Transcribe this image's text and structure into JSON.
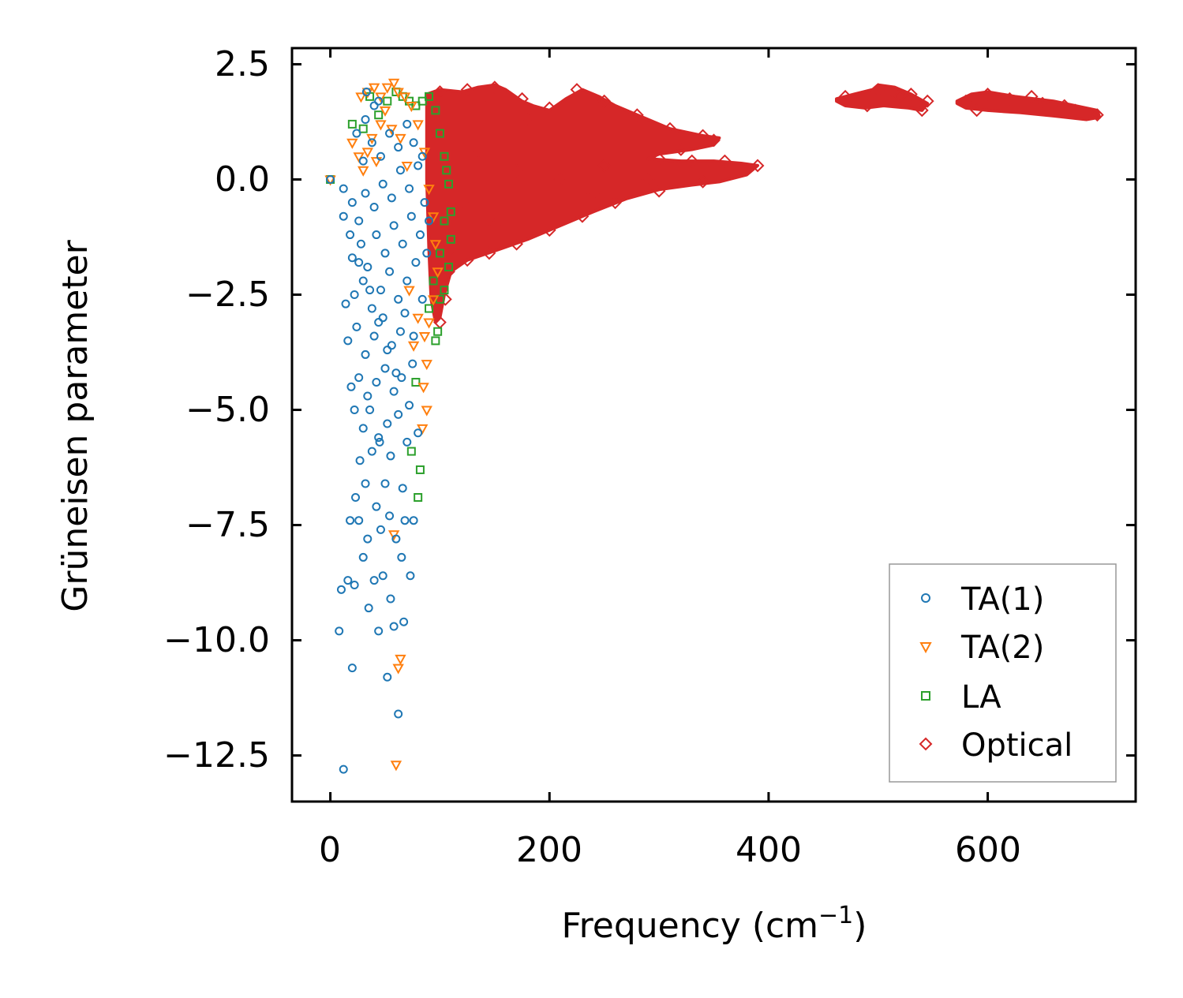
{
  "chart_data": {
    "type": "scatter",
    "title": "",
    "xlabel": "Frequency (cm",
    "xlabel_sup": "−1",
    "xlabel_end": ")",
    "ylabel": "Grüneisen parameter",
    "xlim": [
      -35,
      735
    ],
    "ylim": [
      -13.5,
      2.85
    ],
    "xticks": [
      0,
      200,
      400,
      600
    ],
    "xtick_labels": [
      "0",
      "200",
      "400",
      "600"
    ],
    "yticks": [
      2.5,
      0.0,
      -2.5,
      -5.0,
      -7.5,
      -10.0,
      -12.5
    ],
    "ytick_labels": [
      "2.5",
      "0.0",
      "−2.5",
      "−5.0",
      "−7.5",
      "−10.0",
      "−12.5"
    ],
    "legend_position": "lower-right",
    "series": [
      {
        "name": "TA(1)",
        "marker": "circle",
        "color": "#1f77b4",
        "points": [
          [
            0,
            0
          ],
          [
            12,
            -12.8
          ],
          [
            20,
            -10.6
          ],
          [
            8,
            -9.8
          ],
          [
            35,
            -9.3
          ],
          [
            44,
            -9.8
          ],
          [
            52,
            -10.8
          ],
          [
            58,
            -9.7
          ],
          [
            62,
            -11.6
          ],
          [
            67,
            -9.6
          ],
          [
            10,
            -8.9
          ],
          [
            16,
            -8.7
          ],
          [
            22,
            -8.8
          ],
          [
            30,
            -8.2
          ],
          [
            40,
            -8.7
          ],
          [
            48,
            -8.6
          ],
          [
            55,
            -9.1
          ],
          [
            65,
            -8.2
          ],
          [
            73,
            -8.6
          ],
          [
            18,
            -7.4
          ],
          [
            26,
            -7.4
          ],
          [
            34,
            -7.8
          ],
          [
            46,
            -7.6
          ],
          [
            54,
            -7.3
          ],
          [
            60,
            -7.8
          ],
          [
            68,
            -7.4
          ],
          [
            76,
            -7.4
          ],
          [
            23,
            -6.9
          ],
          [
            32,
            -6.6
          ],
          [
            42,
            -7.1
          ],
          [
            50,
            -6.6
          ],
          [
            66,
            -6.7
          ],
          [
            27,
            -6.1
          ],
          [
            38,
            -5.9
          ],
          [
            45,
            -5.7
          ],
          [
            55,
            -6.0
          ],
          [
            70,
            -5.7
          ],
          [
            80,
            -5.5
          ],
          [
            22,
            -5.0
          ],
          [
            30,
            -5.4
          ],
          [
            36,
            -5.0
          ],
          [
            44,
            -5.6
          ],
          [
            52,
            -5.3
          ],
          [
            62,
            -5.1
          ],
          [
            72,
            -4.9
          ],
          [
            19,
            -4.5
          ],
          [
            26,
            -4.3
          ],
          [
            34,
            -4.7
          ],
          [
            42,
            -4.4
          ],
          [
            50,
            -4.1
          ],
          [
            58,
            -4.6
          ],
          [
            65,
            -4.3
          ],
          [
            75,
            -4.0
          ],
          [
            16,
            -3.5
          ],
          [
            24,
            -3.2
          ],
          [
            32,
            -3.8
          ],
          [
            40,
            -3.4
          ],
          [
            48,
            -3.0
          ],
          [
            56,
            -3.6
          ],
          [
            64,
            -3.3
          ],
          [
            14,
            -2.7
          ],
          [
            22,
            -2.5
          ],
          [
            30,
            -2.2
          ],
          [
            38,
            -2.8
          ],
          [
            46,
            -2.4
          ],
          [
            54,
            -2.0
          ],
          [
            62,
            -2.6
          ],
          [
            70,
            -2.2
          ],
          [
            78,
            -1.8
          ],
          [
            20,
            -1.7
          ],
          [
            28,
            -1.4
          ],
          [
            34,
            -1.9
          ],
          [
            42,
            -1.2
          ],
          [
            50,
            -1.6
          ],
          [
            58,
            -1.0
          ],
          [
            66,
            -1.4
          ],
          [
            74,
            -0.8
          ],
          [
            82,
            -1.2
          ],
          [
            12,
            -0.8
          ],
          [
            20,
            -0.5
          ],
          [
            26,
            -0.9
          ],
          [
            32,
            -0.3
          ],
          [
            40,
            -0.6
          ],
          [
            48,
            -0.1
          ],
          [
            56,
            -0.4
          ],
          [
            64,
            0.2
          ],
          [
            72,
            -0.2
          ],
          [
            80,
            0.3
          ],
          [
            86,
            -0.5
          ],
          [
            30,
            0.4
          ],
          [
            38,
            0.8
          ],
          [
            46,
            0.5
          ],
          [
            54,
            1.0
          ],
          [
            62,
            0.7
          ],
          [
            70,
            1.2
          ],
          [
            24,
            1.0
          ],
          [
            32,
            1.3
          ],
          [
            40,
            1.6
          ],
          [
            33,
            1.9
          ],
          [
            44,
            1.7
          ],
          [
            12,
            -0.2
          ],
          [
            18,
            -1.2
          ],
          [
            26,
            -1.8
          ],
          [
            36,
            -2.4
          ],
          [
            44,
            -3.1
          ],
          [
            52,
            -3.7
          ],
          [
            60,
            -4.2
          ],
          [
            68,
            -2.9
          ],
          [
            76,
            -3.4
          ],
          [
            84,
            -2.6
          ],
          [
            88,
            -1.6
          ],
          [
            90,
            -0.9
          ],
          [
            84,
            0.5
          ],
          [
            76,
            0.8
          ]
        ]
      },
      {
        "name": "TA(2)",
        "marker": "triangle",
        "color": "#ff7f0e",
        "points": [
          [
            0,
            0
          ],
          [
            60,
            -12.7
          ],
          [
            62,
            -10.6
          ],
          [
            64,
            -10.4
          ],
          [
            58,
            -7.7
          ],
          [
            84,
            -5.4
          ],
          [
            88,
            -5.0
          ],
          [
            85,
            -4.5
          ],
          [
            88,
            -4.0
          ],
          [
            20,
            0.8
          ],
          [
            26,
            0.5
          ],
          [
            30,
            0.2
          ],
          [
            34,
            0.6
          ],
          [
            38,
            0.9
          ],
          [
            42,
            0.4
          ],
          [
            46,
            1.2
          ],
          [
            28,
            1.8
          ],
          [
            34,
            1.9
          ],
          [
            40,
            2.0
          ],
          [
            46,
            1.8
          ],
          [
            52,
            2.0
          ],
          [
            58,
            2.1
          ],
          [
            62,
            1.9
          ],
          [
            68,
            1.8
          ],
          [
            74,
            1.6
          ],
          [
            80,
            1.2
          ],
          [
            86,
            0.6
          ],
          [
            90,
            -0.2
          ],
          [
            94,
            -0.8
          ],
          [
            96,
            -1.4
          ],
          [
            98,
            -2.0
          ],
          [
            94,
            -2.6
          ],
          [
            90,
            -3.1
          ],
          [
            86,
            -3.4
          ],
          [
            80,
            -3.0
          ],
          [
            76,
            -3.6
          ],
          [
            72,
            -2.4
          ],
          [
            50,
            1.5
          ],
          [
            56,
            1.1
          ],
          [
            64,
            0.9
          ],
          [
            70,
            0.3
          ]
        ]
      },
      {
        "name": "LA",
        "marker": "square",
        "color": "#2ca02c",
        "points": [
          [
            0,
            0
          ],
          [
            20,
            1.2
          ],
          [
            30,
            1.1
          ],
          [
            36,
            1.8
          ],
          [
            44,
            1.4
          ],
          [
            52,
            1.7
          ],
          [
            60,
            1.9
          ],
          [
            66,
            1.8
          ],
          [
            72,
            1.7
          ],
          [
            78,
            1.6
          ],
          [
            84,
            1.7
          ],
          [
            90,
            1.8
          ],
          [
            96,
            1.5
          ],
          [
            100,
            1.0
          ],
          [
            104,
            0.5
          ],
          [
            108,
            -0.1
          ],
          [
            110,
            -0.7
          ],
          [
            110,
            -1.3
          ],
          [
            108,
            -1.9
          ],
          [
            104,
            -2.4
          ],
          [
            100,
            -2.6
          ],
          [
            98,
            -3.3
          ],
          [
            96,
            -3.5
          ],
          [
            78,
            -4.4
          ],
          [
            74,
            -5.9
          ],
          [
            82,
            -6.3
          ],
          [
            80,
            -6.9
          ],
          [
            90,
            -2.8
          ],
          [
            94,
            -2.2
          ],
          [
            100,
            -1.6
          ],
          [
            104,
            -0.9
          ],
          [
            106,
            0.2
          ]
        ]
      },
      {
        "name": "Optical",
        "marker": "diamond",
        "color": "#d62728",
        "points": [
          [
            100,
            1.9
          ],
          [
            125,
            1.95
          ],
          [
            150,
            2.0
          ],
          [
            175,
            1.75
          ],
          [
            200,
            1.55
          ],
          [
            225,
            1.95
          ],
          [
            250,
            1.7
          ],
          [
            280,
            1.4
          ],
          [
            310,
            1.1
          ],
          [
            340,
            0.95
          ],
          [
            350,
            0.85
          ],
          [
            320,
            0.65
          ],
          [
            300,
            0.45
          ],
          [
            330,
            0.4
          ],
          [
            360,
            0.4
          ],
          [
            390,
            0.3
          ],
          [
            370,
            0.15
          ],
          [
            340,
            -0.05
          ],
          [
            300,
            -0.25
          ],
          [
            260,
            -0.5
          ],
          [
            230,
            -0.8
          ],
          [
            200,
            -1.1
          ],
          [
            170,
            -1.4
          ],
          [
            145,
            -1.6
          ],
          [
            125,
            -1.75
          ],
          [
            108,
            -2.0
          ],
          [
            105,
            -2.6
          ],
          [
            100,
            -3.1
          ],
          [
            110,
            -1.5
          ],
          [
            95,
            1.8
          ],
          [
            140,
            1.6
          ],
          [
            180,
            1.3
          ],
          [
            130,
            0.5
          ],
          [
            170,
            0.2
          ],
          [
            210,
            0.0
          ],
          [
            250,
            0.3
          ],
          [
            290,
            0.0
          ],
          [
            240,
            -0.3
          ],
          [
            150,
            -1.0
          ],
          [
            120,
            -0.5
          ],
          [
            470,
            1.8
          ],
          [
            490,
            1.6
          ],
          [
            500,
            1.95
          ],
          [
            520,
            1.8
          ],
          [
            540,
            1.5
          ],
          [
            545,
            1.7
          ],
          [
            510,
            1.7
          ],
          [
            530,
            1.85
          ],
          [
            580,
            1.7
          ],
          [
            600,
            1.85
          ],
          [
            620,
            1.75
          ],
          [
            650,
            1.65
          ],
          [
            680,
            1.5
          ],
          [
            700,
            1.4
          ],
          [
            590,
            1.5
          ],
          [
            640,
            1.8
          ],
          [
            670,
            1.6
          ]
        ]
      }
    ]
  }
}
